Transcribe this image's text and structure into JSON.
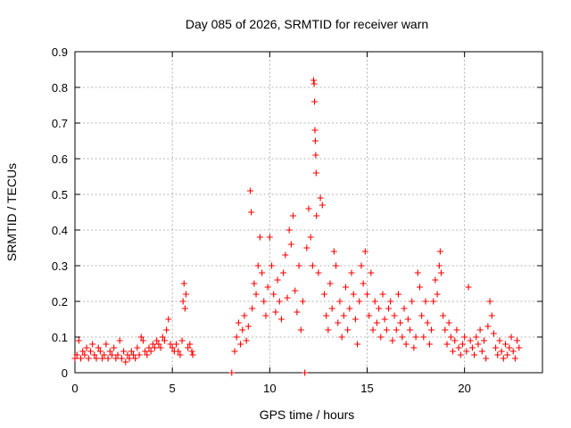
{
  "chart_data": {
    "type": "scatter",
    "title": "Day 085 of 2026, SRMTID for receiver warn",
    "xlabel": "GPS time / hours",
    "ylabel": "SRMTID / TECUs",
    "xlim": [
      0,
      24
    ],
    "ylim": [
      0,
      0.9
    ],
    "xticks": [
      0,
      5,
      10,
      15,
      20
    ],
    "yticks": [
      0,
      0.1,
      0.2,
      0.3,
      0.4,
      0.5,
      0.6,
      0.7,
      0.8,
      0.9
    ],
    "grid": true,
    "marker": "+",
    "color": "#ff0000",
    "series": [
      {
        "name": "SRMTID",
        "points": [
          [
            0.0,
            0.04
          ],
          [
            0.1,
            0.05
          ],
          [
            0.2,
            0.09
          ],
          [
            0.3,
            0.04
          ],
          [
            0.4,
            0.06
          ],
          [
            0.5,
            0.05
          ],
          [
            0.6,
            0.07
          ],
          [
            0.7,
            0.04
          ],
          [
            0.8,
            0.06
          ],
          [
            0.9,
            0.08
          ],
          [
            1.0,
            0.05
          ],
          [
            1.1,
            0.04
          ],
          [
            1.2,
            0.07
          ],
          [
            1.3,
            0.06
          ],
          [
            1.4,
            0.04
          ],
          [
            1.5,
            0.05
          ],
          [
            1.6,
            0.08
          ],
          [
            1.7,
            0.04
          ],
          [
            1.8,
            0.06
          ],
          [
            1.9,
            0.05
          ],
          [
            2.0,
            0.07
          ],
          [
            2.1,
            0.04
          ],
          [
            2.2,
            0.05
          ],
          [
            2.3,
            0.09
          ],
          [
            2.4,
            0.04
          ],
          [
            2.5,
            0.06
          ],
          [
            2.6,
            0.03
          ],
          [
            2.7,
            0.05
          ],
          [
            2.8,
            0.04
          ],
          [
            2.9,
            0.06
          ],
          [
            3.0,
            0.05
          ],
          [
            3.1,
            0.04
          ],
          [
            3.2,
            0.07
          ],
          [
            3.3,
            0.05
          ],
          [
            3.4,
            0.1
          ],
          [
            3.5,
            0.09
          ],
          [
            3.6,
            0.06
          ],
          [
            3.7,
            0.05
          ],
          [
            3.8,
            0.07
          ],
          [
            3.9,
            0.06
          ],
          [
            4.0,
            0.08
          ],
          [
            4.1,
            0.07
          ],
          [
            4.2,
            0.09
          ],
          [
            4.3,
            0.08
          ],
          [
            4.4,
            0.07
          ],
          [
            4.5,
            0.1
          ],
          [
            4.6,
            0.09
          ],
          [
            4.7,
            0.12
          ],
          [
            4.8,
            0.15
          ],
          [
            4.9,
            0.08
          ],
          [
            5.0,
            0.07
          ],
          [
            5.1,
            0.06
          ],
          [
            5.2,
            0.08
          ],
          [
            5.3,
            0.06
          ],
          [
            5.4,
            0.05
          ],
          [
            5.5,
            0.09
          ],
          [
            5.55,
            0.2
          ],
          [
            5.6,
            0.25
          ],
          [
            5.65,
            0.18
          ],
          [
            5.7,
            0.22
          ],
          [
            5.8,
            0.07
          ],
          [
            5.9,
            0.08
          ],
          [
            6.0,
            0.06
          ],
          [
            6.05,
            0.05
          ],
          [
            8.05,
            0.0
          ],
          [
            8.2,
            0.06
          ],
          [
            8.3,
            0.1
          ],
          [
            8.4,
            0.14
          ],
          [
            8.5,
            0.08
          ],
          [
            8.6,
            0.12
          ],
          [
            8.7,
            0.16
          ],
          [
            8.8,
            0.09
          ],
          [
            8.9,
            0.13
          ],
          [
            9.0,
            0.51
          ],
          [
            9.05,
            0.45
          ],
          [
            9.1,
            0.18
          ],
          [
            9.2,
            0.25
          ],
          [
            9.3,
            0.22
          ],
          [
            9.4,
            0.3
          ],
          [
            9.5,
            0.38
          ],
          [
            9.6,
            0.28
          ],
          [
            9.7,
            0.2
          ],
          [
            9.8,
            0.16
          ],
          [
            9.9,
            0.24
          ],
          [
            10.0,
            0.38
          ],
          [
            10.1,
            0.3
          ],
          [
            10.2,
            0.22
          ],
          [
            10.3,
            0.17
          ],
          [
            10.4,
            0.26
          ],
          [
            10.5,
            0.2
          ],
          [
            10.6,
            0.15
          ],
          [
            10.7,
            0.28
          ],
          [
            10.8,
            0.33
          ],
          [
            10.9,
            0.21
          ],
          [
            11.0,
            0.4
          ],
          [
            11.1,
            0.36
          ],
          [
            11.2,
            0.44
          ],
          [
            11.3,
            0.23
          ],
          [
            11.4,
            0.17
          ],
          [
            11.5,
            0.3
          ],
          [
            11.6,
            0.12
          ],
          [
            11.7,
            0.2
          ],
          [
            11.8,
            0.0
          ],
          [
            11.9,
            0.35
          ],
          [
            12.0,
            0.46
          ],
          [
            12.1,
            0.38
          ],
          [
            12.2,
            0.3
          ],
          [
            12.25,
            0.82
          ],
          [
            12.28,
            0.81
          ],
          [
            12.3,
            0.76
          ],
          [
            12.32,
            0.68
          ],
          [
            12.34,
            0.65
          ],
          [
            12.36,
            0.61
          ],
          [
            12.38,
            0.56
          ],
          [
            12.4,
            0.44
          ],
          [
            12.5,
            0.28
          ],
          [
            12.6,
            0.49
          ],
          [
            12.7,
            0.47
          ],
          [
            12.8,
            0.22
          ],
          [
            12.9,
            0.16
          ],
          [
            13.0,
            0.12
          ],
          [
            13.1,
            0.25
          ],
          [
            13.2,
            0.18
          ],
          [
            13.3,
            0.34
          ],
          [
            13.4,
            0.3
          ],
          [
            13.5,
            0.14
          ],
          [
            13.6,
            0.2
          ],
          [
            13.7,
            0.1
          ],
          [
            13.8,
            0.16
          ],
          [
            13.9,
            0.24
          ],
          [
            14.0,
            0.12
          ],
          [
            14.1,
            0.18
          ],
          [
            14.2,
            0.28
          ],
          [
            14.3,
            0.22
          ],
          [
            14.4,
            0.15
          ],
          [
            14.5,
            0.08
          ],
          [
            14.6,
            0.2
          ],
          [
            14.7,
            0.3
          ],
          [
            14.8,
            0.25
          ],
          [
            14.9,
            0.34
          ],
          [
            15.0,
            0.22
          ],
          [
            15.1,
            0.16
          ],
          [
            15.2,
            0.28
          ],
          [
            15.3,
            0.12
          ],
          [
            15.4,
            0.2
          ],
          [
            15.5,
            0.14
          ],
          [
            15.6,
            0.18
          ],
          [
            15.7,
            0.1
          ],
          [
            15.8,
            0.22
          ],
          [
            15.9,
            0.15
          ],
          [
            16.0,
            0.12
          ],
          [
            16.1,
            0.18
          ],
          [
            16.2,
            0.2
          ],
          [
            16.3,
            0.09
          ],
          [
            16.4,
            0.16
          ],
          [
            16.5,
            0.12
          ],
          [
            16.6,
            0.22
          ],
          [
            16.7,
            0.14
          ],
          [
            16.8,
            0.1
          ],
          [
            16.9,
            0.18
          ],
          [
            17.0,
            0.08
          ],
          [
            17.1,
            0.15
          ],
          [
            17.2,
            0.12
          ],
          [
            17.3,
            0.2
          ],
          [
            17.4,
            0.07
          ],
          [
            17.5,
            0.1
          ],
          [
            17.6,
            0.28
          ],
          [
            17.7,
            0.24
          ],
          [
            17.8,
            0.16
          ],
          [
            17.9,
            0.1
          ],
          [
            18.0,
            0.2
          ],
          [
            18.1,
            0.14
          ],
          [
            18.2,
            0.08
          ],
          [
            18.3,
            0.12
          ],
          [
            18.4,
            0.2
          ],
          [
            18.5,
            0.26
          ],
          [
            18.6,
            0.22
          ],
          [
            18.7,
            0.3
          ],
          [
            18.75,
            0.34
          ],
          [
            18.8,
            0.28
          ],
          [
            18.9,
            0.16
          ],
          [
            19.0,
            0.12
          ],
          [
            19.1,
            0.08
          ],
          [
            19.2,
            0.14
          ],
          [
            19.3,
            0.1
          ],
          [
            19.4,
            0.06
          ],
          [
            19.5,
            0.09
          ],
          [
            19.6,
            0.12
          ],
          [
            19.7,
            0.07
          ],
          [
            19.8,
            0.05
          ],
          [
            19.9,
            0.08
          ],
          [
            20.0,
            0.1
          ],
          [
            20.1,
            0.06
          ],
          [
            20.2,
            0.24
          ],
          [
            20.3,
            0.09
          ],
          [
            20.4,
            0.07
          ],
          [
            20.5,
            0.05
          ],
          [
            20.6,
            0.1
          ],
          [
            20.7,
            0.08
          ],
          [
            20.8,
            0.12
          ],
          [
            20.9,
            0.06
          ],
          [
            21.0,
            0.09
          ],
          [
            21.1,
            0.04
          ],
          [
            21.2,
            0.13
          ],
          [
            21.3,
            0.2
          ],
          [
            21.4,
            0.16
          ],
          [
            21.5,
            0.11
          ],
          [
            21.6,
            0.07
          ],
          [
            21.7,
            0.05
          ],
          [
            21.8,
            0.09
          ],
          [
            21.9,
            0.06
          ],
          [
            22.0,
            0.04
          ],
          [
            22.1,
            0.08
          ],
          [
            22.2,
            0.05
          ],
          [
            22.3,
            0.07
          ],
          [
            22.4,
            0.1
          ],
          [
            22.5,
            0.06
          ],
          [
            22.6,
            0.04
          ],
          [
            22.7,
            0.09
          ],
          [
            22.8,
            0.07
          ]
        ]
      }
    ]
  }
}
